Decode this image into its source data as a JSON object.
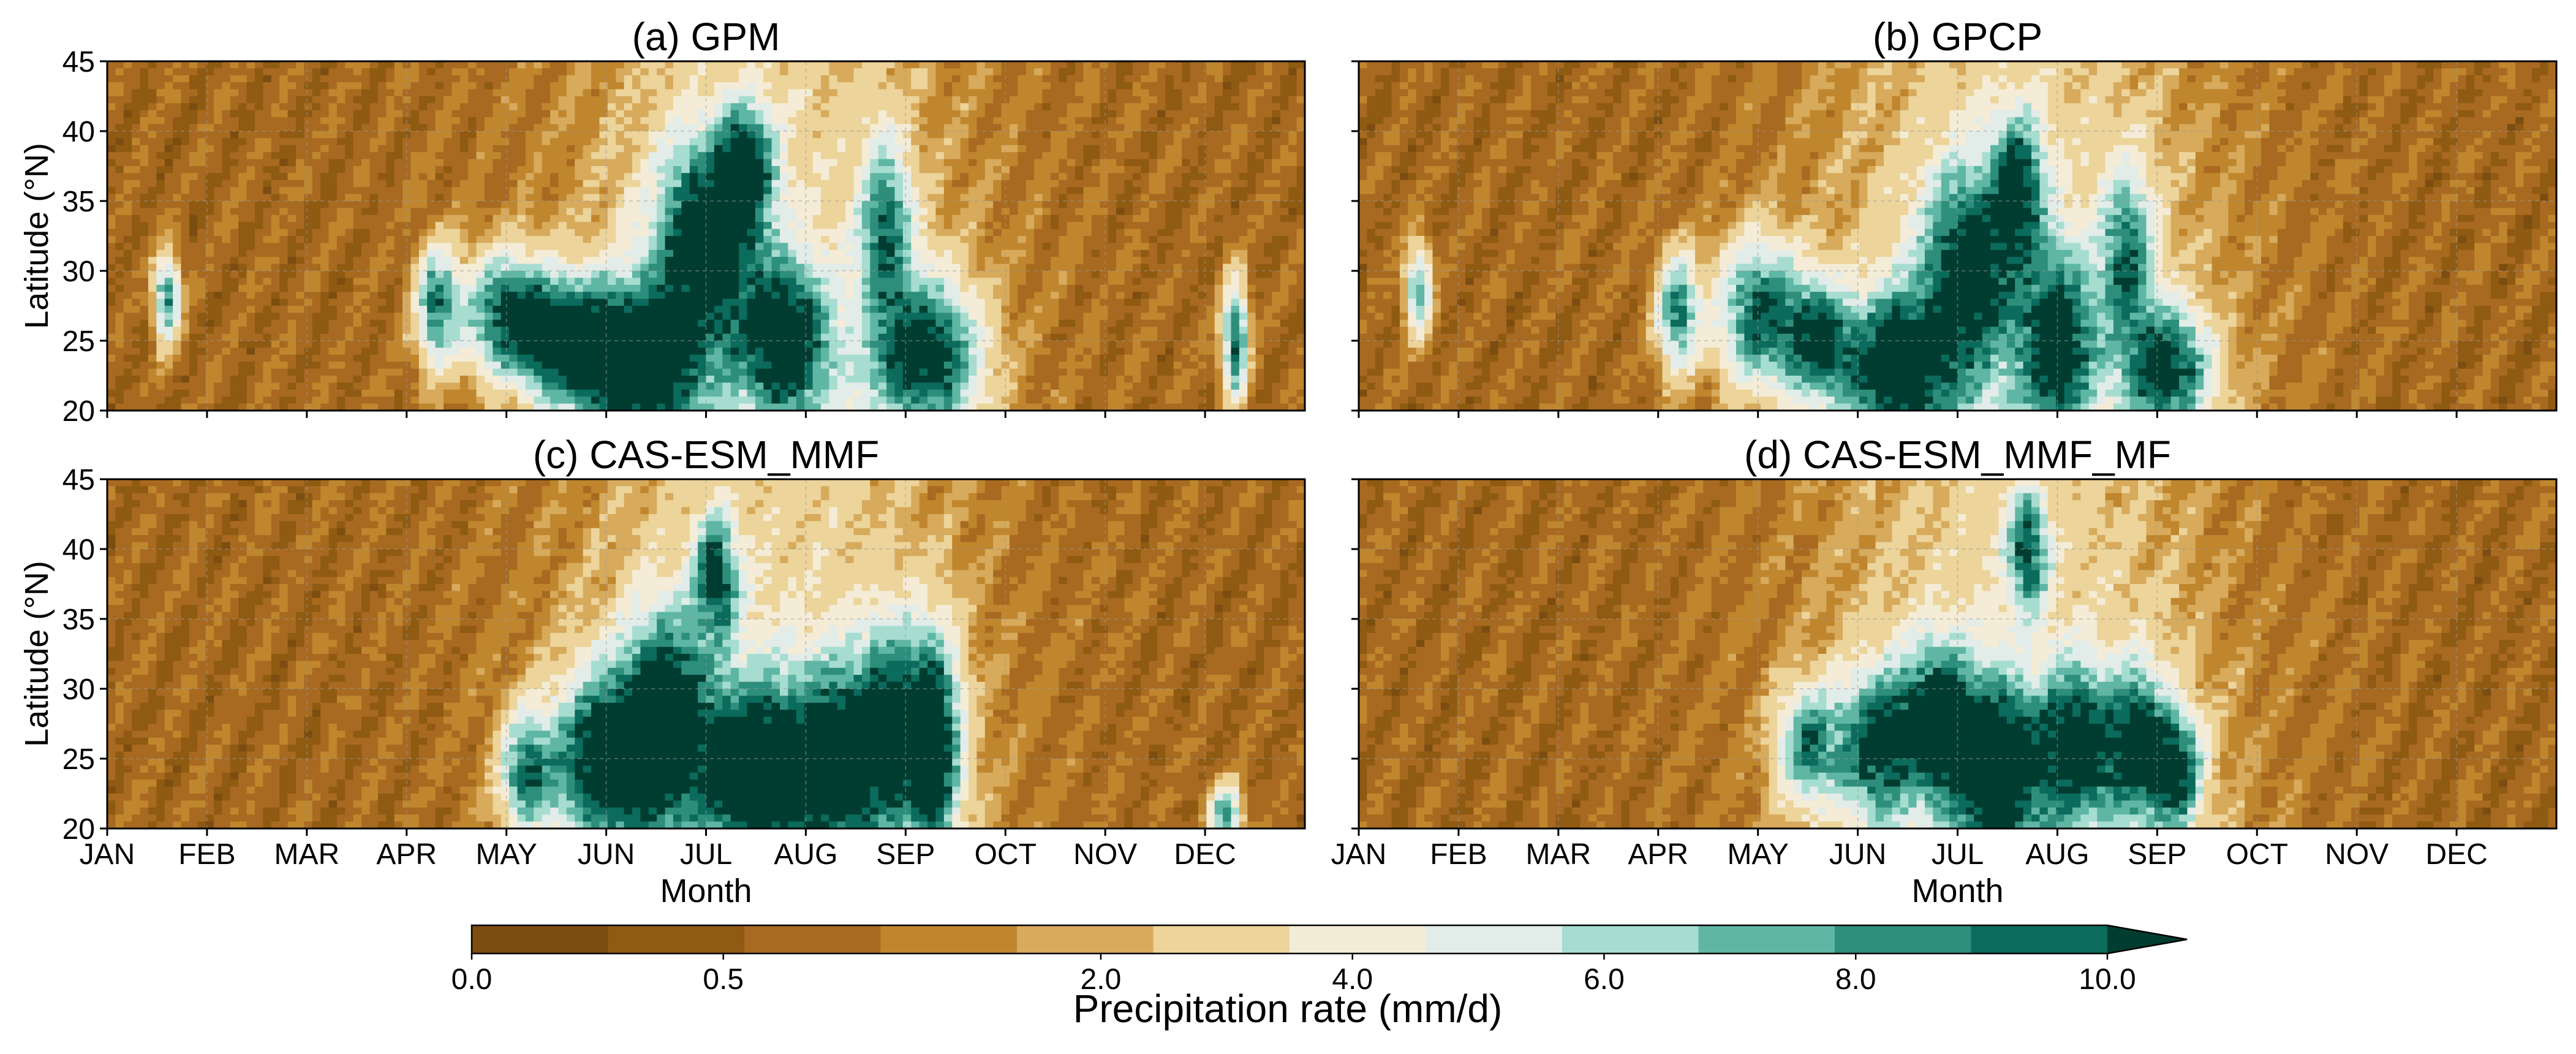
{
  "panels": [
    {
      "id": "a",
      "title": "(a) GPM",
      "show_ylabel": true,
      "show_xlabels": false
    },
    {
      "id": "b",
      "title": "(b) GPCP",
      "show_ylabel": false,
      "show_xlabels": false
    },
    {
      "id": "c",
      "title": "(c) CAS-ESM_MMF",
      "show_ylabel": true,
      "show_xlabels": true
    },
    {
      "id": "d",
      "title": "(d) CAS-ESM_MMF_MF",
      "show_ylabel": false,
      "show_xlabels": true
    }
  ],
  "axes": {
    "xlabel": "Month",
    "ylabel": "Latitude (°N)",
    "x_ticks": [
      "JAN",
      "FEB",
      "MAR",
      "APR",
      "MAY",
      "JUN",
      "JUL",
      "AUG",
      "SEP",
      "OCT",
      "NOV",
      "DEC"
    ],
    "y_ticks": [
      "20",
      "25",
      "30",
      "35",
      "40",
      "45"
    ]
  },
  "colorbar": {
    "label": "Precipitation rate (mm/d)",
    "tick_labels": [
      "0.0",
      "0.5",
      "2.0",
      "4.0",
      "6.0",
      "8.0",
      "10.0"
    ],
    "colors": [
      "#7c4d10",
      "#8f5a12",
      "#a86a20",
      "#c0862e",
      "#d7aa5c",
      "#ecd49a",
      "#f4ecd6",
      "#e2ece9",
      "#a6ddd0",
      "#5fb6a4",
      "#2d8e7c",
      "#0b6b5c",
      "#003d30"
    ]
  },
  "chart_data": [
    {
      "type": "heatmap",
      "title": "(a) GPM",
      "xlabel": "",
      "ylabel": "Latitude (°N)",
      "x_categories": [
        "JAN",
        "FEB",
        "MAR",
        "APR",
        "MAY",
        "JUN",
        "JUL",
        "AUG",
        "SEP",
        "OCT",
        "NOV",
        "DEC"
      ],
      "y_range": [
        20,
        45
      ],
      "y_ticks": [
        20,
        25,
        30,
        35,
        40,
        45
      ],
      "grid": true,
      "monsoon_peaks": [
        {
          "month": 3.3,
          "lat": 27.5,
          "value": 7.0,
          "lat_width": 4,
          "month_width": 0.2
        },
        {
          "month": 4.0,
          "lat": 27.0,
          "value": 7.5,
          "lat_width": 4,
          "month_width": 0.45
        },
        {
          "month": 4.6,
          "lat": 25.0,
          "value": 8.0,
          "lat_width": 4,
          "month_width": 0.5
        },
        {
          "month": 5.3,
          "lat": 23.5,
          "value": 10.5,
          "lat_width": 5,
          "month_width": 0.6
        },
        {
          "month": 6.0,
          "lat": 32.0,
          "value": 9.0,
          "lat_width": 7,
          "month_width": 0.5
        },
        {
          "month": 6.4,
          "lat": 37.5,
          "value": 8.0,
          "lat_width": 4,
          "month_width": 0.25
        },
        {
          "month": 6.8,
          "lat": 25.0,
          "value": 9.0,
          "lat_width": 5,
          "month_width": 0.4
        },
        {
          "month": 7.8,
          "lat": 33.0,
          "value": 6.5,
          "lat_width": 6,
          "month_width": 0.25
        },
        {
          "month": 8.2,
          "lat": 24.0,
          "value": 9.0,
          "lat_width": 5,
          "month_width": 0.5
        },
        {
          "month": 0.6,
          "lat": 28.0,
          "value": 7.0,
          "lat_width": 3,
          "month_width": 0.12
        },
        {
          "month": 11.3,
          "lat": 25.0,
          "value": 8.0,
          "lat_width": 4,
          "month_width": 0.12
        }
      ]
    },
    {
      "type": "heatmap",
      "title": "(b) GPCP",
      "xlabel": "",
      "ylabel": "",
      "x_categories": [
        "JAN",
        "FEB",
        "MAR",
        "APR",
        "MAY",
        "JUN",
        "JUL",
        "AUG",
        "SEP",
        "OCT",
        "NOV",
        "DEC"
      ],
      "y_range": [
        20,
        45
      ],
      "y_ticks": [
        20,
        25,
        30,
        35,
        40,
        45
      ],
      "grid": true,
      "monsoon_peaks": [
        {
          "month": 3.2,
          "lat": 27.0,
          "value": 7.0,
          "lat_width": 4,
          "month_width": 0.2
        },
        {
          "month": 4.0,
          "lat": 27.0,
          "value": 7.5,
          "lat_width": 5,
          "month_width": 0.4
        },
        {
          "month": 4.6,
          "lat": 25.0,
          "value": 8.0,
          "lat_width": 4,
          "month_width": 0.35
        },
        {
          "month": 5.4,
          "lat": 23.0,
          "value": 9.5,
          "lat_width": 5,
          "month_width": 0.5
        },
        {
          "month": 6.1,
          "lat": 30.0,
          "value": 8.5,
          "lat_width": 7,
          "month_width": 0.45
        },
        {
          "month": 6.6,
          "lat": 36.0,
          "value": 7.0,
          "lat_width": 5,
          "month_width": 0.25
        },
        {
          "month": 7.0,
          "lat": 25.0,
          "value": 8.5,
          "lat_width": 6,
          "month_width": 0.35
        },
        {
          "month": 7.7,
          "lat": 31.0,
          "value": 6.5,
          "lat_width": 6,
          "month_width": 0.25
        },
        {
          "month": 8.1,
          "lat": 23.0,
          "value": 8.5,
          "lat_width": 4,
          "month_width": 0.4
        },
        {
          "month": 0.6,
          "lat": 28.5,
          "value": 6.5,
          "lat_width": 3,
          "month_width": 0.12
        }
      ]
    },
    {
      "type": "heatmap",
      "title": "(c) CAS-ESM_MMF",
      "xlabel": "Month",
      "ylabel": "Latitude (°N)",
      "x_categories": [
        "JAN",
        "FEB",
        "MAR",
        "APR",
        "MAY",
        "JUN",
        "JUL",
        "AUG",
        "SEP",
        "OCT",
        "NOV",
        "DEC"
      ],
      "y_range": [
        20,
        45
      ],
      "y_ticks": [
        20,
        25,
        30,
        35,
        40,
        45
      ],
      "grid": true,
      "monsoon_peaks": [
        {
          "month": 4.2,
          "lat": 24.0,
          "value": 7.0,
          "lat_width": 4,
          "month_width": 0.25
        },
        {
          "month": 5.0,
          "lat": 25.0,
          "value": 10.0,
          "lat_width": 6,
          "month_width": 0.5
        },
        {
          "month": 5.6,
          "lat": 28.0,
          "value": 9.5,
          "lat_width": 7,
          "month_width": 0.4
        },
        {
          "month": 6.1,
          "lat": 38.0,
          "value": 8.0,
          "lat_width": 4,
          "month_width": 0.2
        },
        {
          "month": 6.5,
          "lat": 24.0,
          "value": 10.5,
          "lat_width": 6,
          "month_width": 0.5
        },
        {
          "month": 7.3,
          "lat": 25.0,
          "value": 9.0,
          "lat_width": 6,
          "month_width": 0.4
        },
        {
          "month": 7.9,
          "lat": 27.0,
          "value": 8.5,
          "lat_width": 7,
          "month_width": 0.4
        },
        {
          "month": 8.3,
          "lat": 26.0,
          "value": 8.0,
          "lat_width": 7,
          "month_width": 0.25
        },
        {
          "month": 11.2,
          "lat": 21.0,
          "value": 6.5,
          "lat_width": 2,
          "month_width": 0.15
        }
      ]
    },
    {
      "type": "heatmap",
      "title": "(d) CAS-ESM_MMF_MF",
      "xlabel": "Month",
      "ylabel": "",
      "x_categories": [
        "JAN",
        "FEB",
        "MAR",
        "APR",
        "MAY",
        "JUN",
        "JUL",
        "AUG",
        "SEP",
        "OCT",
        "NOV",
        "DEC"
      ],
      "y_range": [
        20,
        45
      ],
      "y_ticks": [
        20,
        25,
        30,
        35,
        40,
        45
      ],
      "grid": true,
      "monsoon_peaks": [
        {
          "month": 4.5,
          "lat": 26.0,
          "value": 6.5,
          "lat_width": 4,
          "month_width": 0.3
        },
        {
          "month": 5.2,
          "lat": 26.0,
          "value": 8.0,
          "lat_width": 5,
          "month_width": 0.4
        },
        {
          "month": 5.8,
          "lat": 28.0,
          "value": 8.0,
          "lat_width": 5,
          "month_width": 0.35
        },
        {
          "month": 6.4,
          "lat": 24.0,
          "value": 9.5,
          "lat_width": 6,
          "month_width": 0.45
        },
        {
          "month": 6.7,
          "lat": 40.0,
          "value": 7.0,
          "lat_width": 4,
          "month_width": 0.2
        },
        {
          "month": 7.2,
          "lat": 26.0,
          "value": 8.5,
          "lat_width": 5,
          "month_width": 0.35
        },
        {
          "month": 7.8,
          "lat": 26.0,
          "value": 8.5,
          "lat_width": 5,
          "month_width": 0.3
        },
        {
          "month": 8.2,
          "lat": 24.0,
          "value": 8.0,
          "lat_width": 4,
          "month_width": 0.25
        }
      ]
    }
  ]
}
